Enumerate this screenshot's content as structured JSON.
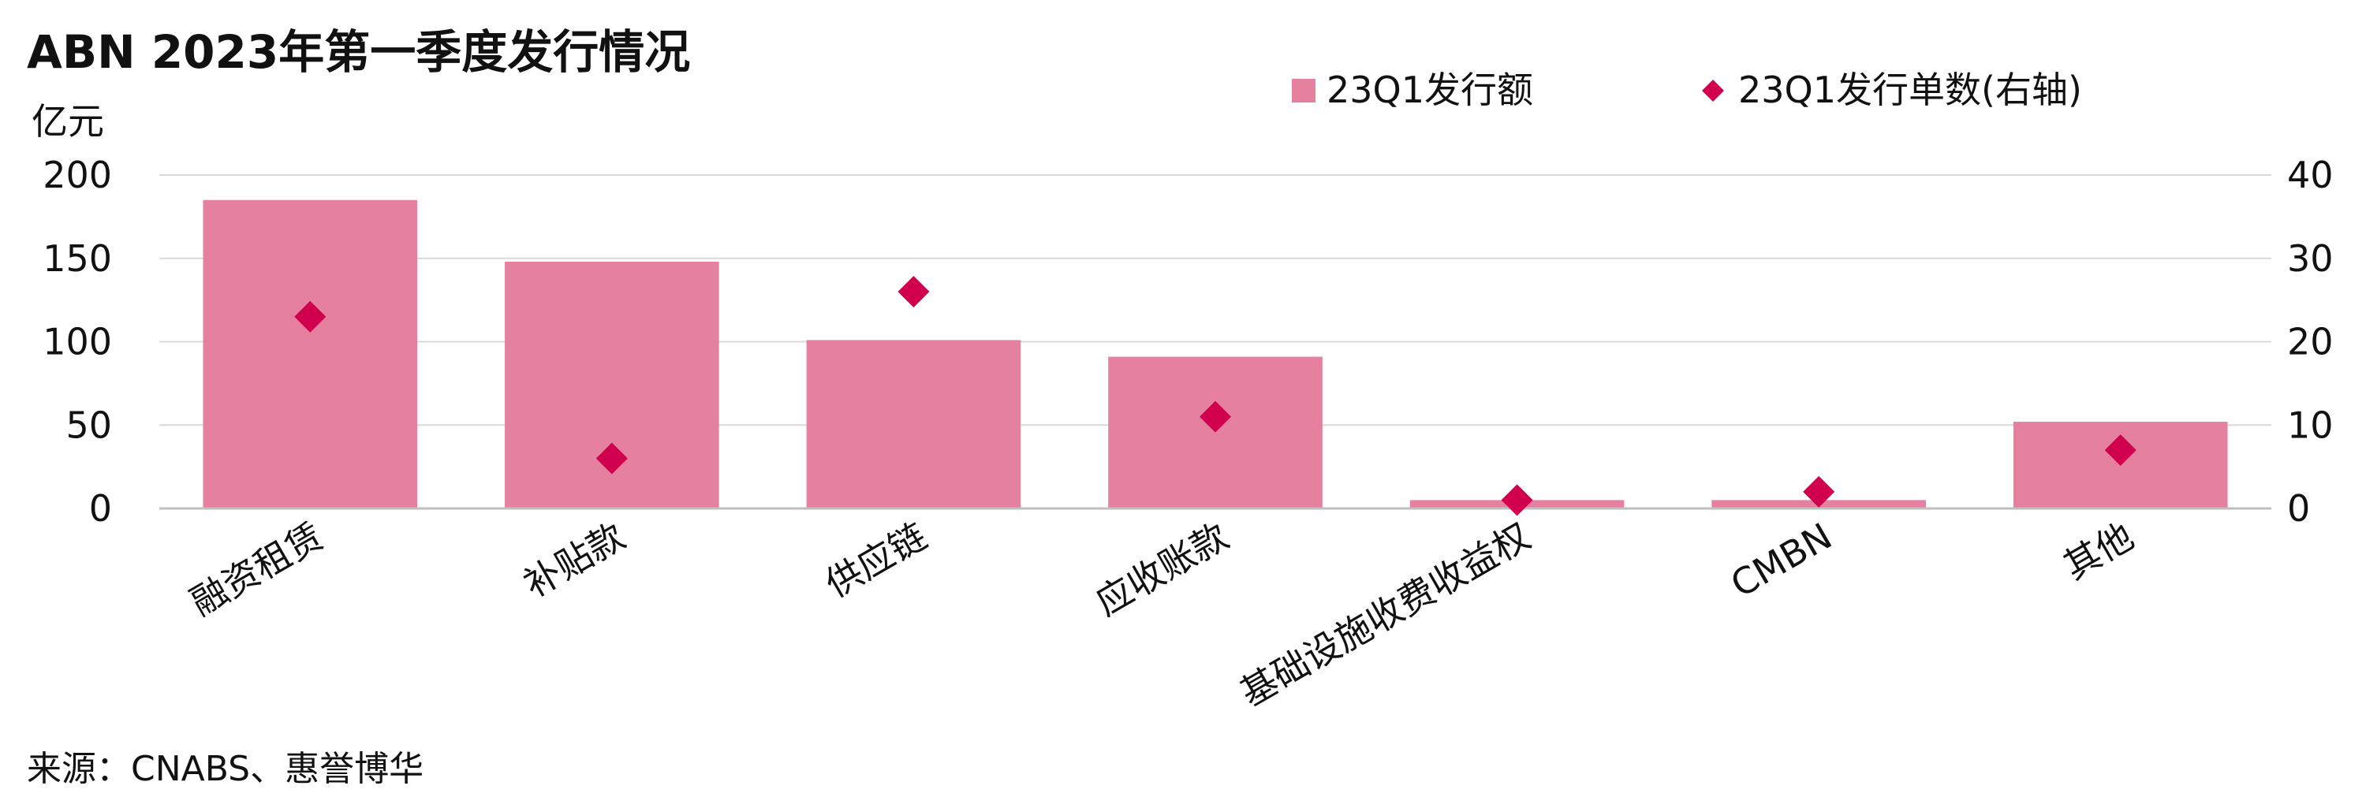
{
  "chart_data": {
    "type": "bar",
    "title": "ABN 2023年第一季度发行情况",
    "ylabel_left": "亿元",
    "ylabel_right": "",
    "categories": [
      "融资租赁",
      "补贴款",
      "供应链",
      "应收账款",
      "基础设施收费收益权",
      "CMBN",
      "其他"
    ],
    "series": [
      {
        "name": "23Q1发行额",
        "type": "bar",
        "axis": "left",
        "color": "#e5819f",
        "values": [
          185,
          148,
          101,
          91,
          5,
          5,
          52
        ]
      },
      {
        "name": "23Q1发行单数(右轴)",
        "type": "scatter",
        "marker": "diamond",
        "axis": "right",
        "color": "#d1004f",
        "values": [
          23,
          6,
          26,
          11,
          1,
          2,
          7
        ]
      }
    ],
    "ylim_left": [
      0,
      200
    ],
    "ylim_right": [
      0,
      40
    ],
    "yticks_left": [
      "0",
      "50",
      "100",
      "150",
      "200"
    ],
    "yticks_right": [
      "0",
      "10",
      "20",
      "30",
      "40"
    ],
    "grid": true,
    "legend_position": "top-right",
    "source": "来源：CNABS、惠誉博华"
  }
}
